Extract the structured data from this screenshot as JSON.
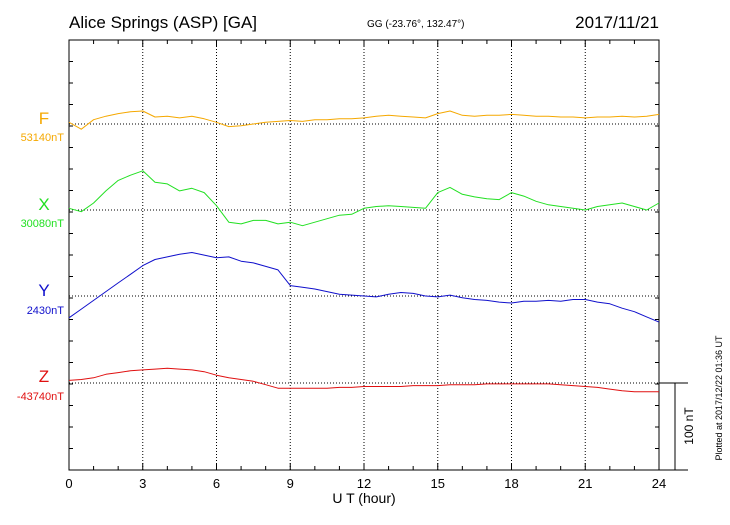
{
  "header": {
    "station": "Alice Springs (ASP)  [GA]",
    "coords": "GG (-23.76°, 132.47°)",
    "date": "2017/11/21"
  },
  "plotted_note": "Plotted at 2017/12/22 01:36 UT",
  "colors": {
    "F": "#f5a800",
    "X": "#22e022",
    "Y": "#1010cc",
    "Z": "#e01010",
    "axis": "#000000",
    "grid": "#000000"
  },
  "chart_data": {
    "type": "line",
    "xlabel": "U T (hour)",
    "xlim": [
      0,
      24
    ],
    "x_ticks": [
      "0",
      "3",
      "6",
      "9",
      "12",
      "15",
      "18",
      "21",
      "24"
    ],
    "scale_bar": {
      "label": "100 nT",
      "value_nT": 100
    },
    "x": [
      0,
      0.5,
      1,
      1.5,
      2,
      2.5,
      3,
      3.5,
      4,
      4.5,
      5,
      5.5,
      6,
      6.5,
      7,
      7.5,
      8,
      8.5,
      9,
      9.5,
      10,
      10.5,
      11,
      11.5,
      12,
      12.5,
      13,
      13.5,
      14,
      14.5,
      15,
      15.5,
      16,
      16.5,
      17,
      17.5,
      18,
      18.5,
      19,
      19.5,
      20,
      20.5,
      21,
      21.5,
      22,
      22.5,
      23,
      23.5,
      24
    ],
    "series": [
      {
        "name": "F",
        "baseline_label": "53140nT",
        "values": [
          2,
          -6,
          5,
          9,
          12,
          14,
          15,
          8,
          9,
          7,
          9,
          6,
          2,
          -3,
          -2,
          0,
          2,
          3,
          4,
          3,
          5,
          5,
          6,
          6,
          7,
          9,
          10,
          9,
          8,
          7,
          12,
          15,
          10,
          9,
          10,
          10,
          11,
          10,
          9,
          9,
          8,
          8,
          7,
          8,
          8,
          9,
          8,
          9,
          11
        ]
      },
      {
        "name": "X",
        "baseline_label": "30080nT",
        "values": [
          2,
          -2,
          8,
          22,
          34,
          40,
          45,
          32,
          30,
          22,
          25,
          20,
          5,
          -14,
          -16,
          -12,
          -12,
          -16,
          -14,
          -18,
          -14,
          -10,
          -6,
          -5,
          2,
          4,
          5,
          4,
          3,
          2,
          20,
          26,
          18,
          15,
          13,
          12,
          20,
          16,
          10,
          6,
          4,
          2,
          0,
          4,
          6,
          8,
          4,
          0,
          8
        ]
      },
      {
        "name": "Y",
        "baseline_label": "2430nT",
        "values": [
          -25,
          -15,
          -5,
          5,
          15,
          25,
          35,
          42,
          45,
          48,
          50,
          47,
          44,
          45,
          40,
          38,
          34,
          30,
          12,
          10,
          8,
          5,
          2,
          1,
          0,
          -1,
          2,
          4,
          3,
          0,
          -1,
          1,
          -2,
          -4,
          -5,
          -7,
          -8,
          -6,
          -6,
          -5,
          -6,
          -4,
          -4,
          -7,
          -9,
          -14,
          -18,
          -24,
          -30
        ]
      },
      {
        "name": "Z",
        "baseline_label": "-43740nT",
        "values": [
          3,
          4,
          6,
          10,
          12,
          14,
          15,
          16,
          17,
          16,
          15,
          13,
          9,
          6,
          4,
          2,
          -2,
          -6,
          -6,
          -6,
          -6,
          -6,
          -5,
          -5,
          -4,
          -4,
          -4,
          -4,
          -3,
          -3,
          -3,
          -2,
          -2,
          -2,
          -1,
          -1,
          -1,
          -1,
          -1,
          -1,
          -2,
          -3,
          -4,
          -5,
          -7,
          -9,
          -10,
          -10,
          -10
        ]
      }
    ]
  }
}
